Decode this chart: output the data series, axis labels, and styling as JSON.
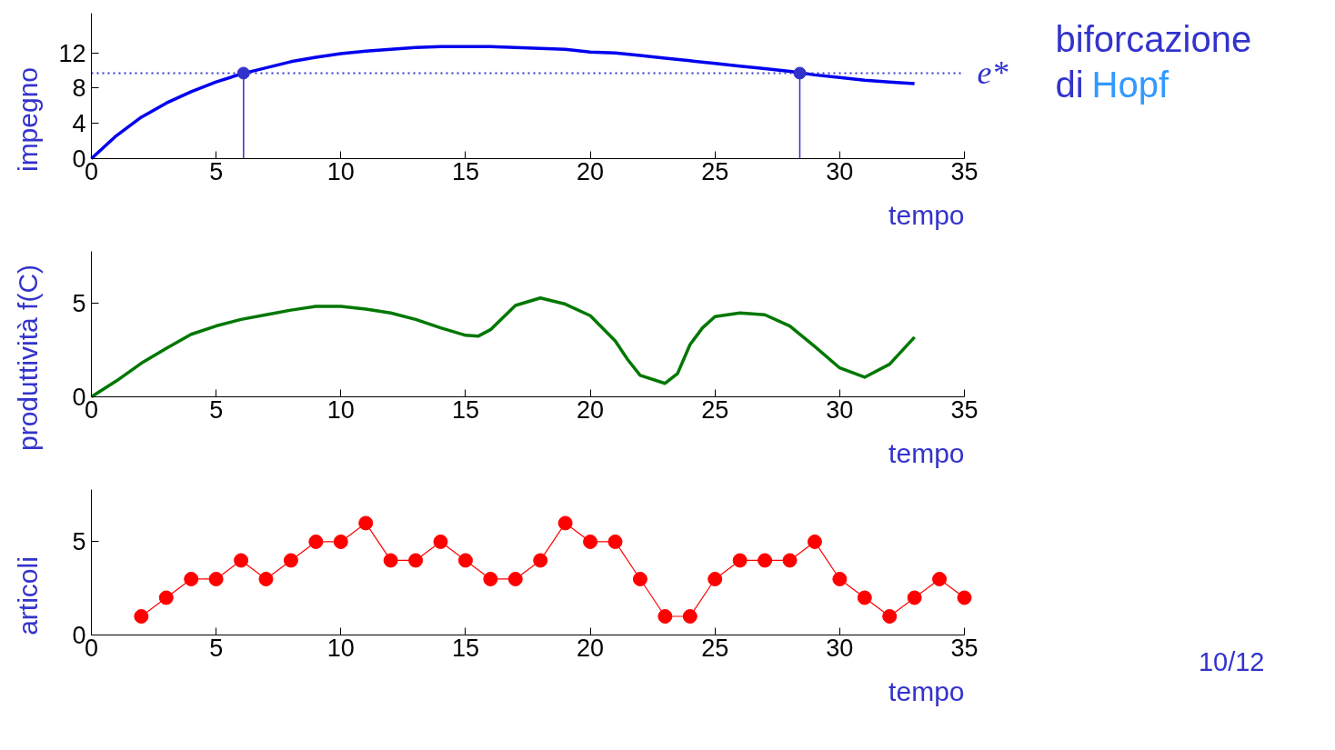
{
  "chart_data": [
    {
      "type": "line",
      "xlabel": "tempo",
      "ylabel": "impegno",
      "xlim": [
        0,
        35
      ],
      "xticks": [
        0,
        5,
        10,
        15,
        20,
        25,
        30,
        35
      ],
      "ylim": [
        0,
        16.5
      ],
      "yticks": [
        0,
        4,
        8,
        12
      ],
      "grid": false,
      "x": [
        0,
        1,
        2,
        3,
        4,
        5,
        6,
        7,
        8,
        9,
        10,
        11,
        12,
        13,
        14,
        15,
        16,
        17,
        18,
        19,
        20,
        21,
        22,
        23,
        24,
        25,
        26,
        27,
        28,
        29,
        30,
        31,
        32,
        33
      ],
      "series": [
        {
          "color": "#0000ee",
          "values": [
            0,
            2.6,
            4.7,
            6.3,
            7.6,
            8.7,
            9.6,
            10.3,
            11.0,
            11.5,
            11.9,
            12.2,
            12.4,
            12.6,
            12.7,
            12.7,
            12.7,
            12.6,
            12.5,
            12.4,
            12.1,
            12.0,
            11.7,
            11.4,
            11.1,
            10.8,
            10.5,
            10.2,
            9.9,
            9.5,
            9.2,
            8.9,
            8.7,
            8.5
          ]
        },
        {
          "type": "lollipop",
          "color": "#3333cc",
          "x": [
            6.1,
            28.4
          ],
          "values": [
            9.7,
            9.7
          ]
        }
      ],
      "ref_lines": [
        {
          "axis": "y",
          "value": 9.7,
          "label": "e*",
          "color": "#3333cc",
          "line_style": "dotted"
        }
      ],
      "annotations": [
        "biforcazione di Hopf"
      ]
    },
    {
      "type": "line",
      "xlabel": "tempo",
      "ylabel": "produttività f(C)",
      "xlim": [
        0,
        35
      ],
      "xticks": [
        0,
        5,
        10,
        15,
        20,
        25,
        30,
        35
      ],
      "ylim": [
        0,
        7.8
      ],
      "yticks": [
        0,
        5
      ],
      "grid": false,
      "x": [
        0,
        1,
        2,
        3,
        4,
        5,
        6,
        7,
        8,
        9,
        10,
        11,
        12,
        13,
        14,
        15,
        15.5,
        16,
        17,
        18,
        19,
        20,
        21,
        21.5,
        22,
        23,
        23.5,
        24,
        24.5,
        25,
        26,
        27,
        28,
        29,
        30,
        31,
        32,
        33
      ],
      "series": [
        {
          "color": "#007700",
          "values": [
            0,
            0.85,
            1.8,
            2.6,
            3.35,
            3.8,
            4.15,
            4.4,
            4.65,
            4.85,
            4.85,
            4.7,
            4.5,
            4.15,
            3.7,
            3.3,
            3.25,
            3.6,
            4.9,
            5.3,
            4.97,
            4.35,
            3.0,
            2.0,
            1.15,
            0.72,
            1.25,
            2.8,
            3.7,
            4.3,
            4.5,
            4.4,
            3.8,
            2.7,
            1.55,
            1.05,
            1.75,
            3.2
          ]
        }
      ]
    },
    {
      "type": "line",
      "xlabel": "tempo",
      "ylabel": "articoli",
      "xlim": [
        0,
        35
      ],
      "xticks": [
        0,
        5,
        10,
        15,
        20,
        25,
        30,
        35
      ],
      "ylim": [
        0,
        7.8
      ],
      "yticks": [
        0,
        5
      ],
      "grid": false,
      "marker": "circle",
      "x": [
        2,
        3,
        4,
        5,
        6,
        7,
        8,
        9,
        10,
        11,
        12,
        13,
        14,
        15,
        16,
        17,
        18,
        19,
        20,
        21,
        22,
        23,
        24,
        25,
        26,
        27,
        28,
        29,
        30,
        31,
        32,
        33,
        34,
        35
      ],
      "series": [
        {
          "color": "#ff0000",
          "values": [
            1,
            2,
            3,
            3,
            4,
            3,
            4,
            5,
            5,
            6,
            4,
            4,
            5,
            4,
            3,
            3,
            4,
            6,
            5,
            5,
            3,
            1,
            1,
            3,
            4,
            4,
            4,
            5,
            3,
            2,
            1,
            2,
            3,
            2
          ]
        }
      ],
      "annotations": [
        "10/12"
      ]
    }
  ]
}
